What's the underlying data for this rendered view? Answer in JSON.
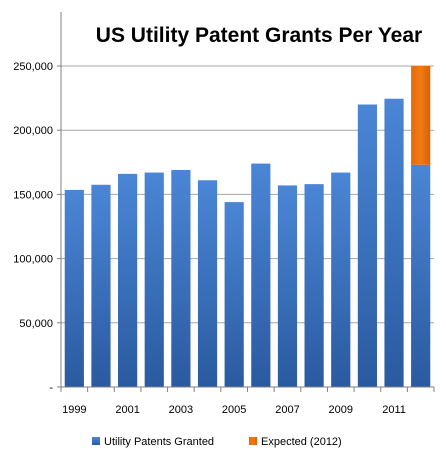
{
  "chart_data": {
    "type": "bar",
    "title": "US Utility Patent Grants Per Year",
    "xlabel": "",
    "ylabel": "",
    "categories": [
      "1999",
      "2000",
      "2001",
      "2002",
      "2003",
      "2004",
      "2005",
      "2006",
      "2007",
      "2008",
      "2009",
      "2010",
      "2011",
      "2012"
    ],
    "x_tick_labels": [
      "1999",
      "",
      "2001",
      "",
      "2003",
      "",
      "2005",
      "",
      "2007",
      "",
      "2009",
      "",
      "2011",
      ""
    ],
    "y_tick_values": [
      0,
      50000,
      100000,
      150000,
      200000,
      250000
    ],
    "y_tick_labels": [
      "-",
      "50,000",
      "100,000",
      "150,000",
      "200,000",
      "250,000"
    ],
    "ylim": [
      0,
      250000
    ],
    "stacked": true,
    "grid": true,
    "legend_position": "bottom",
    "series": [
      {
        "name": "Utility Patents Granted",
        "color": "#3a72c4",
        "values": [
          153500,
          157500,
          166000,
          167000,
          169000,
          161000,
          144000,
          174000,
          157000,
          158000,
          167000,
          220000,
          224500,
          173000
        ]
      },
      {
        "name": "Expected (2012)",
        "color": "#e36c0a",
        "values": [
          0,
          0,
          0,
          0,
          0,
          0,
          0,
          0,
          0,
          0,
          0,
          0,
          0,
          77000
        ]
      }
    ]
  }
}
